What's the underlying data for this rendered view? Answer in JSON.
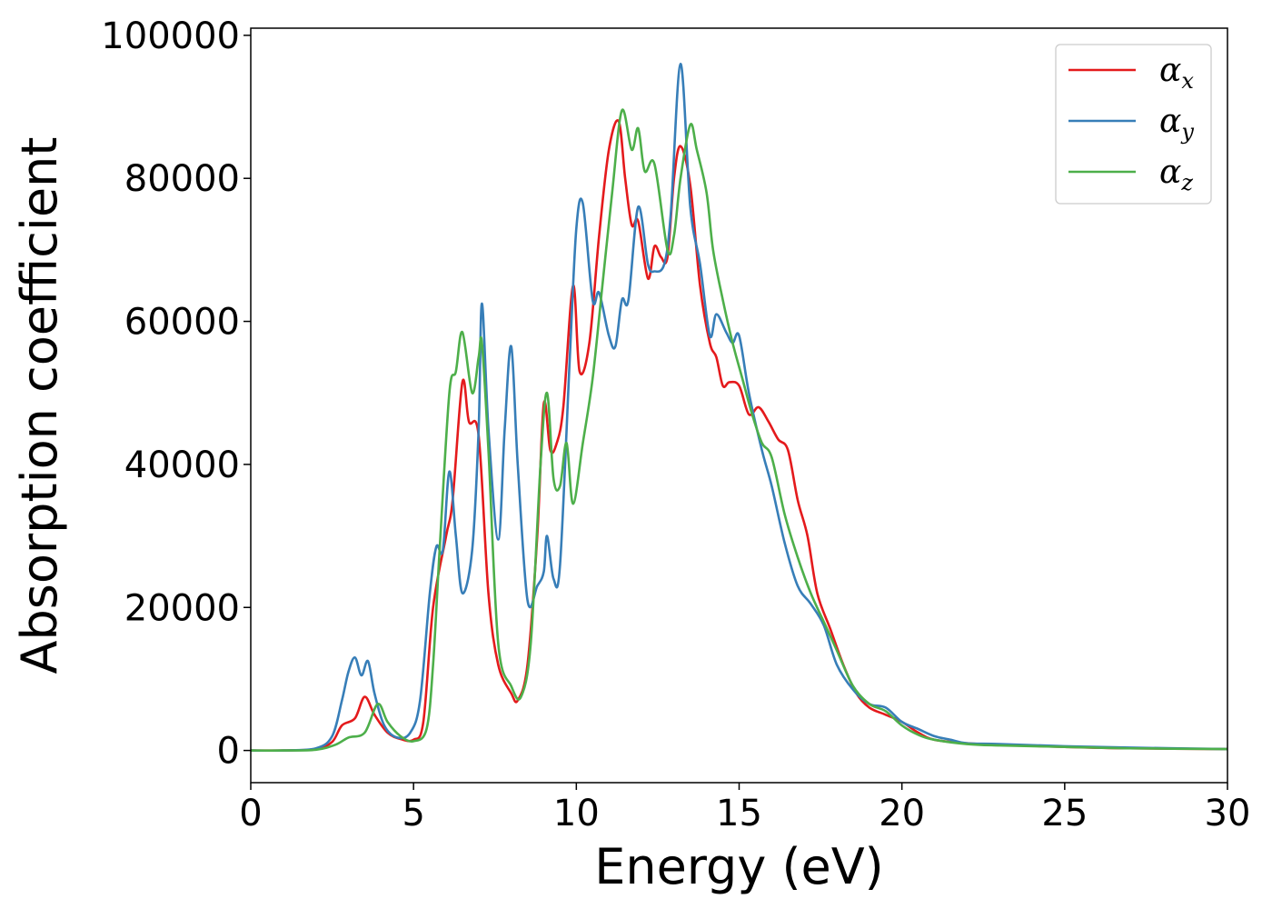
{
  "chart_data": {
    "type": "line",
    "xlabel": "Energy (eV)",
    "ylabel": "Absorption coefficient",
    "xlim": [
      0,
      30
    ],
    "ylim": [
      -4500,
      101000
    ],
    "xticks": [
      0,
      5,
      10,
      15,
      20,
      25,
      30
    ],
    "yticks": [
      0,
      20000,
      40000,
      60000,
      80000,
      100000
    ],
    "grid": false,
    "legend_position": "top-right",
    "series": [
      {
        "name": "α",
        "subscript": "x",
        "color": "#e41a1c",
        "points": [
          [
            0,
            0
          ],
          [
            1,
            0
          ],
          [
            2,
            200
          ],
          [
            2.5,
            1200
          ],
          [
            2.8,
            3500
          ],
          [
            3.2,
            4500
          ],
          [
            3.5,
            7500
          ],
          [
            3.8,
            5000
          ],
          [
            4.2,
            2500
          ],
          [
            4.6,
            1600
          ],
          [
            5.0,
            1500
          ],
          [
            5.3,
            4000
          ],
          [
            5.6,
            20000
          ],
          [
            6.0,
            30000
          ],
          [
            6.2,
            35000
          ],
          [
            6.5,
            51500
          ],
          [
            6.7,
            46000
          ],
          [
            7.0,
            44000
          ],
          [
            7.3,
            22000
          ],
          [
            7.6,
            12000
          ],
          [
            8.0,
            8000
          ],
          [
            8.2,
            7000
          ],
          [
            8.5,
            12000
          ],
          [
            8.8,
            30000
          ],
          [
            9.0,
            48500
          ],
          [
            9.2,
            42000
          ],
          [
            9.4,
            43000
          ],
          [
            9.6,
            48000
          ],
          [
            9.9,
            65000
          ],
          [
            10.1,
            53000
          ],
          [
            10.4,
            57000
          ],
          [
            10.7,
            72000
          ],
          [
            11.0,
            84000
          ],
          [
            11.3,
            88000
          ],
          [
            11.5,
            80000
          ],
          [
            11.7,
            73500
          ],
          [
            11.9,
            74000
          ],
          [
            12.2,
            66000
          ],
          [
            12.4,
            70500
          ],
          [
            12.6,
            69000
          ],
          [
            12.8,
            69000
          ],
          [
            13.0,
            80000
          ],
          [
            13.2,
            84500
          ],
          [
            13.5,
            79000
          ],
          [
            13.8,
            65000
          ],
          [
            14.1,
            57000
          ],
          [
            14.3,
            55000
          ],
          [
            14.5,
            51000
          ],
          [
            14.7,
            51500
          ],
          [
            15.0,
            51000
          ],
          [
            15.3,
            47000
          ],
          [
            15.6,
            48000
          ],
          [
            15.9,
            46000
          ],
          [
            16.2,
            43500
          ],
          [
            16.5,
            42000
          ],
          [
            16.8,
            35000
          ],
          [
            17.1,
            30000
          ],
          [
            17.4,
            22000
          ],
          [
            17.8,
            17000
          ],
          [
            18.2,
            12000
          ],
          [
            18.6,
            8000
          ],
          [
            19.0,
            6000
          ],
          [
            19.5,
            5000
          ],
          [
            20.0,
            4000
          ],
          [
            20.5,
            2500
          ],
          [
            21.0,
            1500
          ],
          [
            22.0,
            1000
          ],
          [
            23.0,
            800
          ],
          [
            25.0,
            500
          ],
          [
            27.0,
            300
          ],
          [
            30.0,
            200
          ]
        ]
      },
      {
        "name": "α",
        "subscript": "y",
        "color": "#377eb8",
        "points": [
          [
            0,
            0
          ],
          [
            1,
            0
          ],
          [
            2,
            300
          ],
          [
            2.5,
            2000
          ],
          [
            2.8,
            7000
          ],
          [
            3.0,
            11000
          ],
          [
            3.2,
            13000
          ],
          [
            3.4,
            10500
          ],
          [
            3.6,
            12500
          ],
          [
            3.8,
            8000
          ],
          [
            4.1,
            3500
          ],
          [
            4.5,
            1800
          ],
          [
            4.9,
            2500
          ],
          [
            5.2,
            7000
          ],
          [
            5.5,
            22000
          ],
          [
            5.7,
            28500
          ],
          [
            5.9,
            28000
          ],
          [
            6.1,
            39000
          ],
          [
            6.3,
            30000
          ],
          [
            6.5,
            22000
          ],
          [
            6.8,
            28000
          ],
          [
            7.0,
            45000
          ],
          [
            7.1,
            62500
          ],
          [
            7.3,
            45000
          ],
          [
            7.6,
            29500
          ],
          [
            7.8,
            45000
          ],
          [
            8.0,
            56500
          ],
          [
            8.2,
            40000
          ],
          [
            8.5,
            21000
          ],
          [
            8.8,
            23000
          ],
          [
            9.0,
            25000
          ],
          [
            9.1,
            30000
          ],
          [
            9.3,
            24000
          ],
          [
            9.5,
            26000
          ],
          [
            9.8,
            55000
          ],
          [
            10.0,
            73000
          ],
          [
            10.2,
            76500
          ],
          [
            10.5,
            63000
          ],
          [
            10.7,
            64000
          ],
          [
            11.0,
            58000
          ],
          [
            11.2,
            56500
          ],
          [
            11.4,
            63000
          ],
          [
            11.6,
            63000
          ],
          [
            11.9,
            76000
          ],
          [
            12.2,
            68000
          ],
          [
            12.4,
            67000
          ],
          [
            12.7,
            68000
          ],
          [
            12.9,
            75000
          ],
          [
            13.2,
            96000
          ],
          [
            13.5,
            76000
          ],
          [
            13.8,
            68000
          ],
          [
            14.1,
            58000
          ],
          [
            14.3,
            61000
          ],
          [
            14.6,
            58500
          ],
          [
            14.8,
            57000
          ],
          [
            15.0,
            58000
          ],
          [
            15.3,
            50000
          ],
          [
            15.7,
            42000
          ],
          [
            16.0,
            37000
          ],
          [
            16.4,
            29000
          ],
          [
            16.8,
            23000
          ],
          [
            17.2,
            20500
          ],
          [
            17.6,
            17500
          ],
          [
            18.0,
            12000
          ],
          [
            18.5,
            8500
          ],
          [
            19.0,
            6500
          ],
          [
            19.5,
            6000
          ],
          [
            20.0,
            4000
          ],
          [
            20.5,
            3000
          ],
          [
            21.0,
            2000
          ],
          [
            21.5,
            1500
          ],
          [
            22.0,
            1000
          ],
          [
            23.0,
            900
          ],
          [
            25.0,
            600
          ],
          [
            27.0,
            400
          ],
          [
            30.0,
            200
          ]
        ]
      },
      {
        "name": "α",
        "subscript": "z",
        "color": "#4daf4a",
        "points": [
          [
            0,
            0
          ],
          [
            1,
            0
          ],
          [
            2,
            100
          ],
          [
            2.6,
            800
          ],
          [
            3.0,
            1800
          ],
          [
            3.5,
            2500
          ],
          [
            3.9,
            6500
          ],
          [
            4.2,
            4000
          ],
          [
            4.6,
            2000
          ],
          [
            5.0,
            1300
          ],
          [
            5.4,
            3000
          ],
          [
            5.6,
            12000
          ],
          [
            5.8,
            28000
          ],
          [
            6.1,
            50000
          ],
          [
            6.3,
            53000
          ],
          [
            6.5,
            58500
          ],
          [
            6.8,
            50000
          ],
          [
            7.0,
            55000
          ],
          [
            7.1,
            57000
          ],
          [
            7.3,
            42000
          ],
          [
            7.6,
            15000
          ],
          [
            8.0,
            9000
          ],
          [
            8.3,
            7500
          ],
          [
            8.6,
            15000
          ],
          [
            8.9,
            40000
          ],
          [
            9.1,
            50000
          ],
          [
            9.3,
            38000
          ],
          [
            9.5,
            37000
          ],
          [
            9.7,
            43000
          ],
          [
            9.9,
            34500
          ],
          [
            10.2,
            43000
          ],
          [
            10.5,
            52000
          ],
          [
            10.8,
            65000
          ],
          [
            11.1,
            78000
          ],
          [
            11.4,
            89500
          ],
          [
            11.7,
            84000
          ],
          [
            11.9,
            87000
          ],
          [
            12.1,
            81000
          ],
          [
            12.4,
            82000
          ],
          [
            12.8,
            70000
          ],
          [
            13.0,
            72000
          ],
          [
            13.2,
            80000
          ],
          [
            13.5,
            87500
          ],
          [
            13.7,
            84000
          ],
          [
            14.0,
            78000
          ],
          [
            14.2,
            70000
          ],
          [
            14.5,
            63000
          ],
          [
            14.8,
            57000
          ],
          [
            15.1,
            52000
          ],
          [
            15.4,
            47000
          ],
          [
            15.7,
            43000
          ],
          [
            16.0,
            41000
          ],
          [
            16.4,
            33000
          ],
          [
            16.8,
            27000
          ],
          [
            17.2,
            22000
          ],
          [
            17.6,
            18000
          ],
          [
            18.0,
            14000
          ],
          [
            18.5,
            9000
          ],
          [
            19.0,
            6500
          ],
          [
            19.5,
            5500
          ],
          [
            20.0,
            3500
          ],
          [
            20.5,
            2200
          ],
          [
            21.0,
            1500
          ],
          [
            22.0,
            900
          ],
          [
            23.0,
            700
          ],
          [
            25.0,
            500
          ],
          [
            27.0,
            300
          ],
          [
            30.0,
            200
          ]
        ]
      }
    ]
  }
}
